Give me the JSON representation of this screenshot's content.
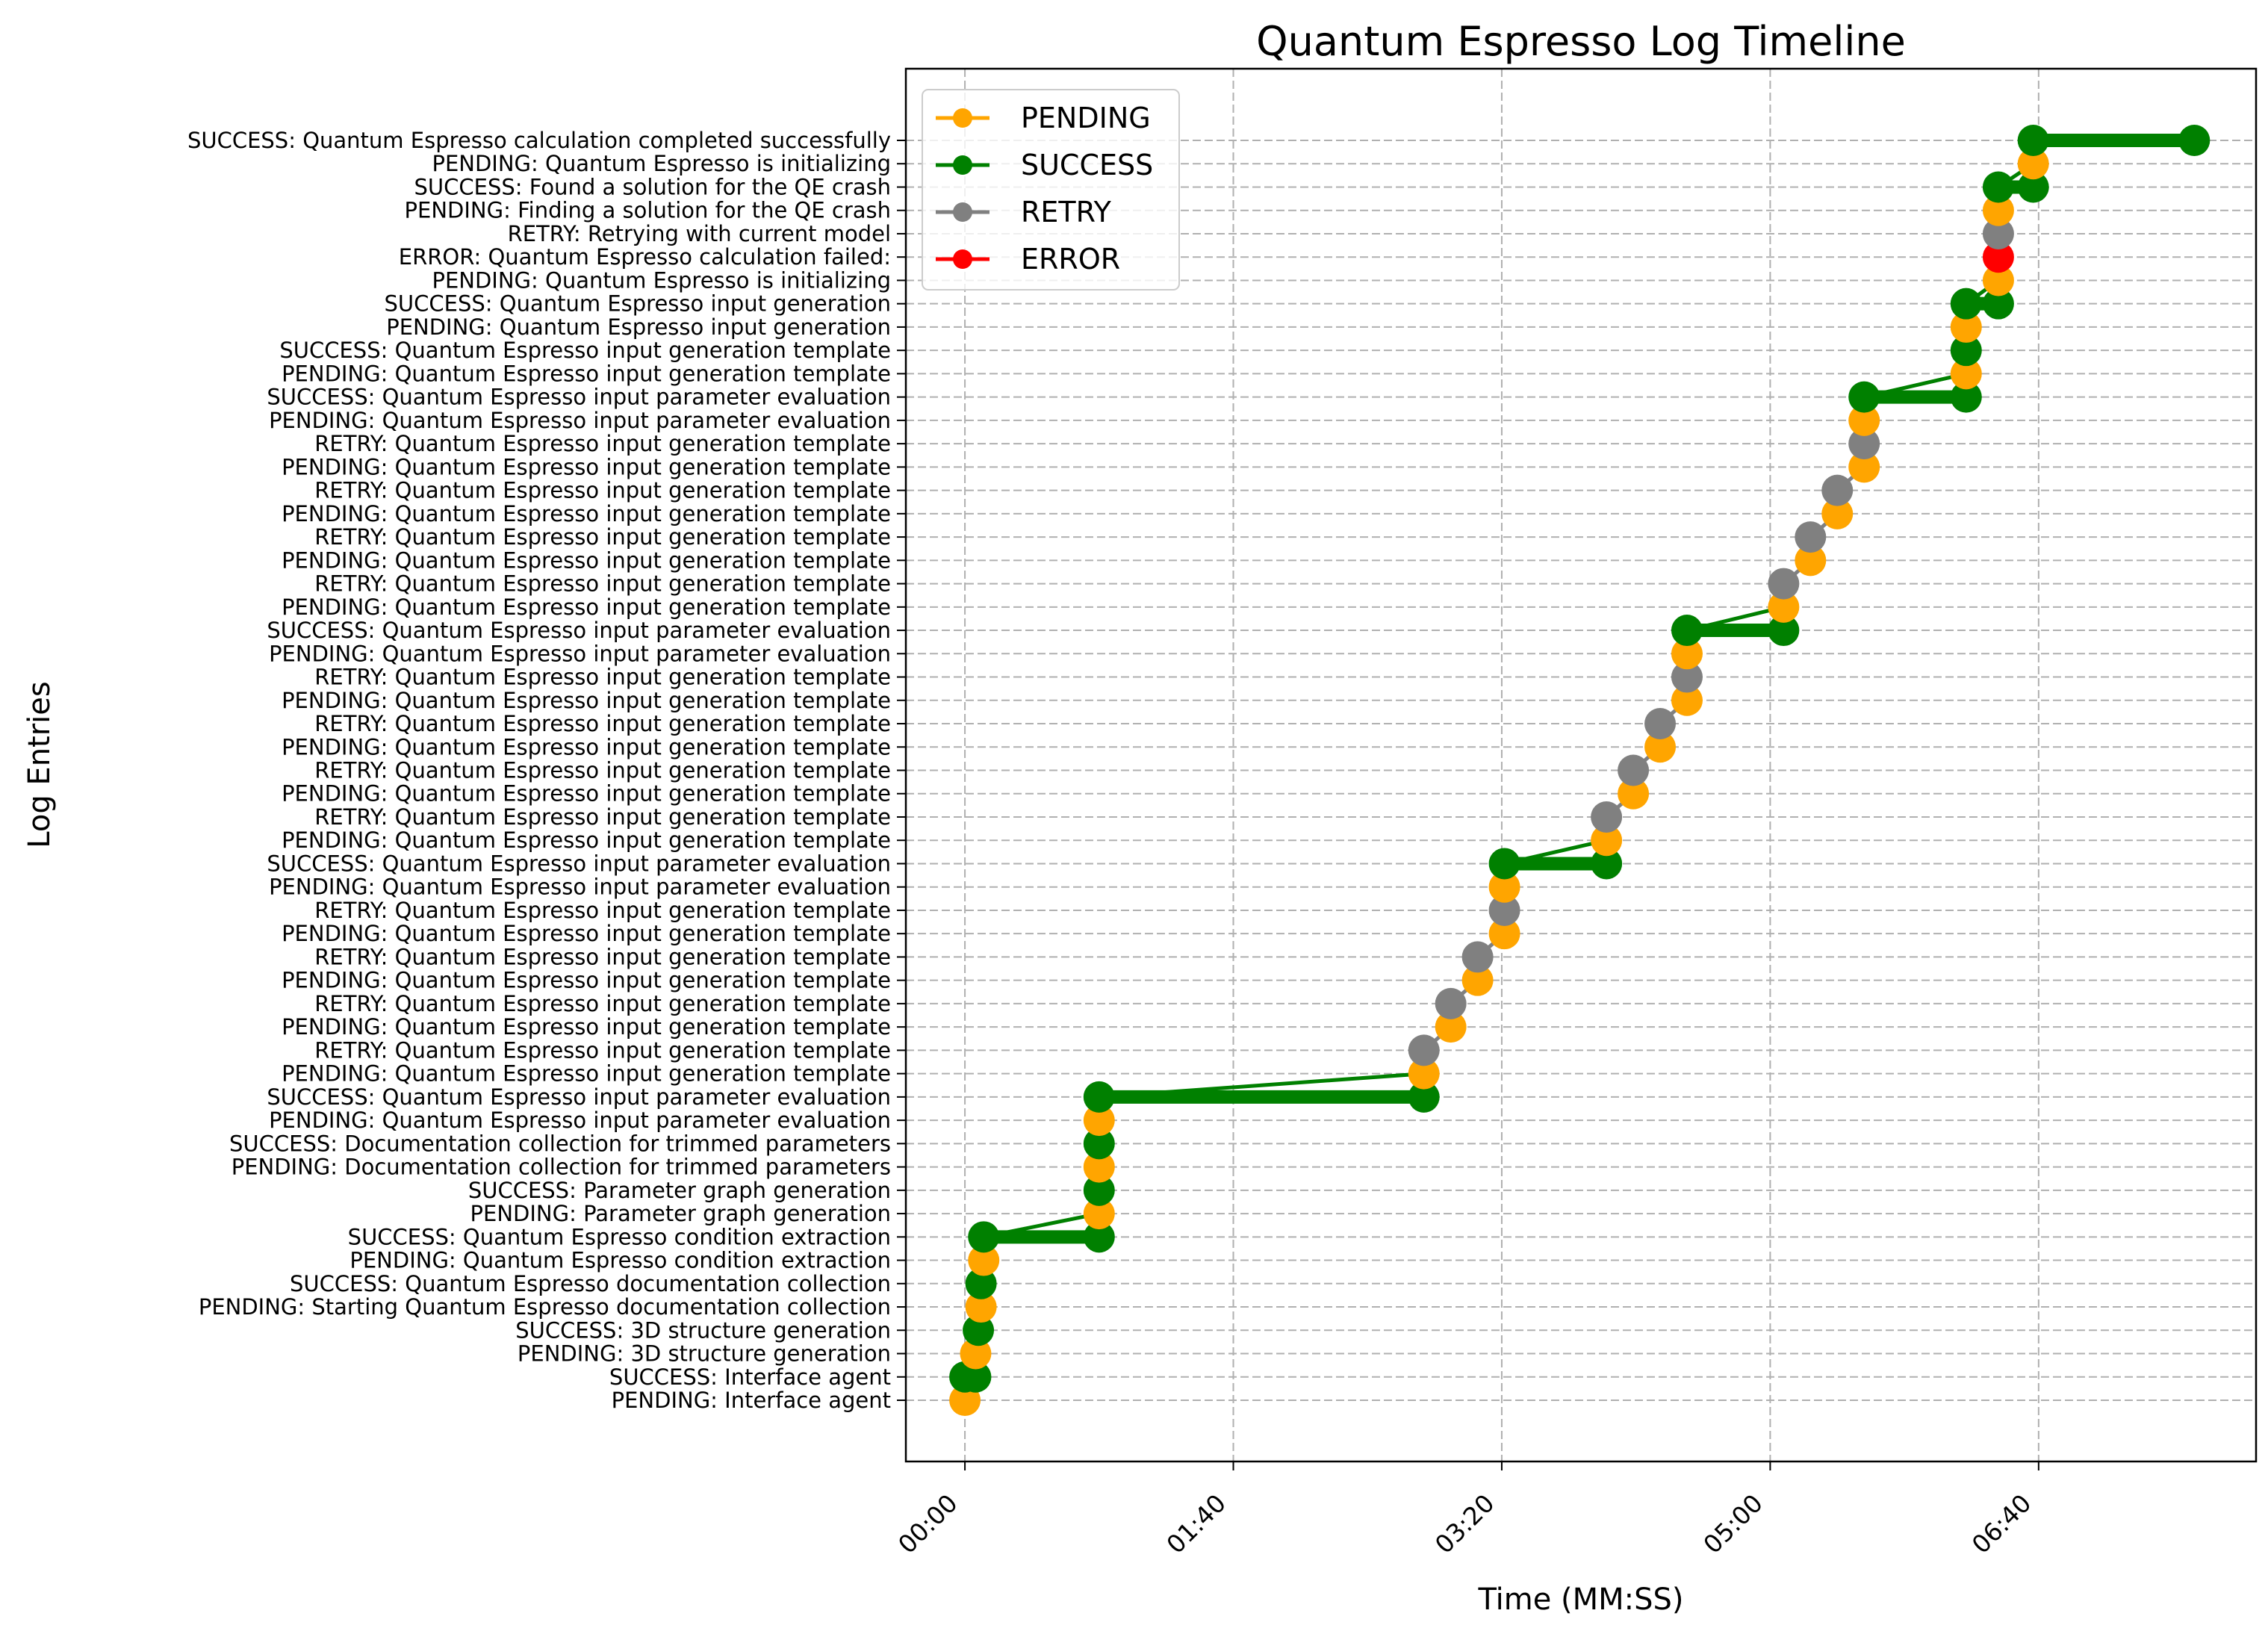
{
  "chart_data": {
    "type": "line",
    "title": "Quantum Espresso Log Timeline",
    "xlabel": "Time (MM:SS)",
    "ylabel": "Log Entries",
    "xlim": [
      -22,
      481
    ],
    "x_ticks": [
      0,
      100,
      200,
      300,
      400
    ],
    "x_tick_labels": [
      "00:00",
      "01:40",
      "03:20",
      "05:00",
      "06:40"
    ],
    "grid": true,
    "legend": {
      "location": "top-left",
      "entries": [
        {
          "name": "PENDING",
          "color": "#ffa500"
        },
        {
          "name": "SUCCESS",
          "color": "#008000"
        },
        {
          "name": "RETRY",
          "color": "#808080"
        },
        {
          "name": "ERROR",
          "color": "#ff0000"
        }
      ]
    },
    "status_colors": {
      "PENDING": "#ffa500",
      "SUCCESS": "#008000",
      "RETRY": "#808080",
      "ERROR": "#ff0000"
    },
    "entries": [
      {
        "label": "PENDING: Interface agent",
        "status": "PENDING",
        "t": 0
      },
      {
        "label": "SUCCESS: Interface agent",
        "status": "SUCCESS",
        "t": 0,
        "end": 4
      },
      {
        "label": "PENDING: 3D structure generation",
        "status": "PENDING",
        "t": 4
      },
      {
        "label": "SUCCESS: 3D structure generation",
        "status": "SUCCESS",
        "t": 5
      },
      {
        "label": "PENDING: Starting Quantum Espresso documentation collection",
        "status": "PENDING",
        "t": 6
      },
      {
        "label": "SUCCESS: Quantum Espresso documentation collection",
        "status": "SUCCESS",
        "t": 6
      },
      {
        "label": "PENDING: Quantum Espresso condition extraction",
        "status": "PENDING",
        "t": 7
      },
      {
        "label": "SUCCESS: Quantum Espresso condition extraction",
        "status": "SUCCESS",
        "t": 7,
        "end": 50
      },
      {
        "label": "PENDING: Parameter graph generation",
        "status": "PENDING",
        "t": 50
      },
      {
        "label": "SUCCESS: Parameter graph generation",
        "status": "SUCCESS",
        "t": 50
      },
      {
        "label": "PENDING: Documentation collection for trimmed parameters",
        "status": "PENDING",
        "t": 50
      },
      {
        "label": "SUCCESS: Documentation collection for trimmed parameters",
        "status": "SUCCESS",
        "t": 50
      },
      {
        "label": "PENDING: Quantum Espresso input parameter evaluation",
        "status": "PENDING",
        "t": 50
      },
      {
        "label": "SUCCESS: Quantum Espresso input parameter evaluation",
        "status": "SUCCESS",
        "t": 50,
        "end": 171
      },
      {
        "label": "PENDING: Quantum Espresso input generation template",
        "status": "PENDING",
        "t": 171
      },
      {
        "label": "RETRY: Quantum Espresso input generation template",
        "status": "RETRY",
        "t": 171
      },
      {
        "label": "PENDING: Quantum Espresso input generation template",
        "status": "PENDING",
        "t": 181
      },
      {
        "label": "RETRY: Quantum Espresso input generation template",
        "status": "RETRY",
        "t": 181
      },
      {
        "label": "PENDING: Quantum Espresso input generation template",
        "status": "PENDING",
        "t": 191
      },
      {
        "label": "RETRY: Quantum Espresso input generation template",
        "status": "RETRY",
        "t": 191
      },
      {
        "label": "PENDING: Quantum Espresso input generation template",
        "status": "PENDING",
        "t": 201
      },
      {
        "label": "RETRY: Quantum Espresso input generation template",
        "status": "RETRY",
        "t": 201
      },
      {
        "label": "PENDING: Quantum Espresso input parameter evaluation",
        "status": "PENDING",
        "t": 201
      },
      {
        "label": "SUCCESS: Quantum Espresso input parameter evaluation",
        "status": "SUCCESS",
        "t": 201,
        "end": 239
      },
      {
        "label": "PENDING: Quantum Espresso input generation template",
        "status": "PENDING",
        "t": 239
      },
      {
        "label": "RETRY: Quantum Espresso input generation template",
        "status": "RETRY",
        "t": 239
      },
      {
        "label": "PENDING: Quantum Espresso input generation template",
        "status": "PENDING",
        "t": 249
      },
      {
        "label": "RETRY: Quantum Espresso input generation template",
        "status": "RETRY",
        "t": 249
      },
      {
        "label": "PENDING: Quantum Espresso input generation template",
        "status": "PENDING",
        "t": 259
      },
      {
        "label": "RETRY: Quantum Espresso input generation template",
        "status": "RETRY",
        "t": 259
      },
      {
        "label": "PENDING: Quantum Espresso input generation template",
        "status": "PENDING",
        "t": 269
      },
      {
        "label": "RETRY: Quantum Espresso input generation template",
        "status": "RETRY",
        "t": 269
      },
      {
        "label": "PENDING: Quantum Espresso input parameter evaluation",
        "status": "PENDING",
        "t": 269
      },
      {
        "label": "SUCCESS: Quantum Espresso input parameter evaluation",
        "status": "SUCCESS",
        "t": 269,
        "end": 305
      },
      {
        "label": "PENDING: Quantum Espresso input generation template",
        "status": "PENDING",
        "t": 305
      },
      {
        "label": "RETRY: Quantum Espresso input generation template",
        "status": "RETRY",
        "t": 305
      },
      {
        "label": "PENDING: Quantum Espresso input generation template",
        "status": "PENDING",
        "t": 315
      },
      {
        "label": "RETRY: Quantum Espresso input generation template",
        "status": "RETRY",
        "t": 315
      },
      {
        "label": "PENDING: Quantum Espresso input generation template",
        "status": "PENDING",
        "t": 325
      },
      {
        "label": "RETRY: Quantum Espresso input generation template",
        "status": "RETRY",
        "t": 325
      },
      {
        "label": "PENDING: Quantum Espresso input generation template",
        "status": "PENDING",
        "t": 335
      },
      {
        "label": "RETRY: Quantum Espresso input generation template",
        "status": "RETRY",
        "t": 335
      },
      {
        "label": "PENDING: Quantum Espresso input parameter evaluation",
        "status": "PENDING",
        "t": 335
      },
      {
        "label": "SUCCESS: Quantum Espresso input parameter evaluation",
        "status": "SUCCESS",
        "t": 335,
        "end": 373
      },
      {
        "label": "PENDING: Quantum Espresso input generation template",
        "status": "PENDING",
        "t": 373
      },
      {
        "label": "SUCCESS: Quantum Espresso input generation template",
        "status": "SUCCESS",
        "t": 373
      },
      {
        "label": "PENDING: Quantum Espresso input generation",
        "status": "PENDING",
        "t": 373
      },
      {
        "label": "SUCCESS: Quantum Espresso input generation",
        "status": "SUCCESS",
        "t": 373,
        "end": 385
      },
      {
        "label": "PENDING: Quantum Espresso is initializing",
        "status": "PENDING",
        "t": 385
      },
      {
        "label": "ERROR: Quantum Espresso calculation failed: ",
        "status": "ERROR",
        "t": 385
      },
      {
        "label": "RETRY: Retrying with current model",
        "status": "RETRY",
        "t": 385
      },
      {
        "label": "PENDING: Finding a solution for the QE crash",
        "status": "PENDING",
        "t": 385
      },
      {
        "label": "SUCCESS: Found a solution for the QE crash",
        "status": "SUCCESS",
        "t": 385,
        "end": 398
      },
      {
        "label": "PENDING: Quantum Espresso is initializing",
        "status": "PENDING",
        "t": 398
      },
      {
        "label": "SUCCESS: Quantum Espresso calculation completed successfully",
        "status": "SUCCESS",
        "t": 398,
        "end": 458
      }
    ]
  }
}
